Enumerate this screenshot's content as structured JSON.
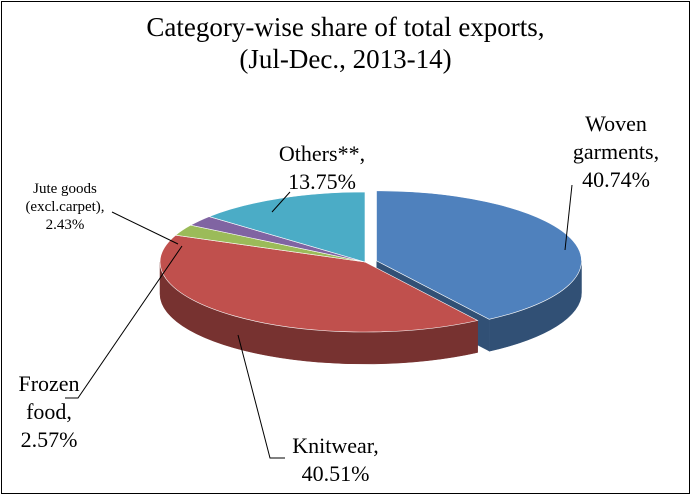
{
  "chart_data": {
    "type": "pie3d",
    "title": "Category-wise share of total exports,",
    "subtitle": "(Jul-Dec., 2013-14)",
    "categories": [
      "Woven garments,",
      "Knitwear,",
      "Frozen food,",
      "Jute goods (excl.carpet),",
      "Others**,"
    ],
    "values": [
      40.74,
      40.51,
      2.57,
      2.43,
      13.75
    ],
    "value_labels": [
      "40.74%",
      "40.51%",
      "2.57%",
      "2.43%",
      "13.75%"
    ],
    "colors": [
      "#4f81bd",
      "#c0504d",
      "#9bbb59",
      "#8064a2",
      "#4bacc6"
    ],
    "exploded": [
      true,
      false,
      false,
      false,
      false
    ]
  }
}
